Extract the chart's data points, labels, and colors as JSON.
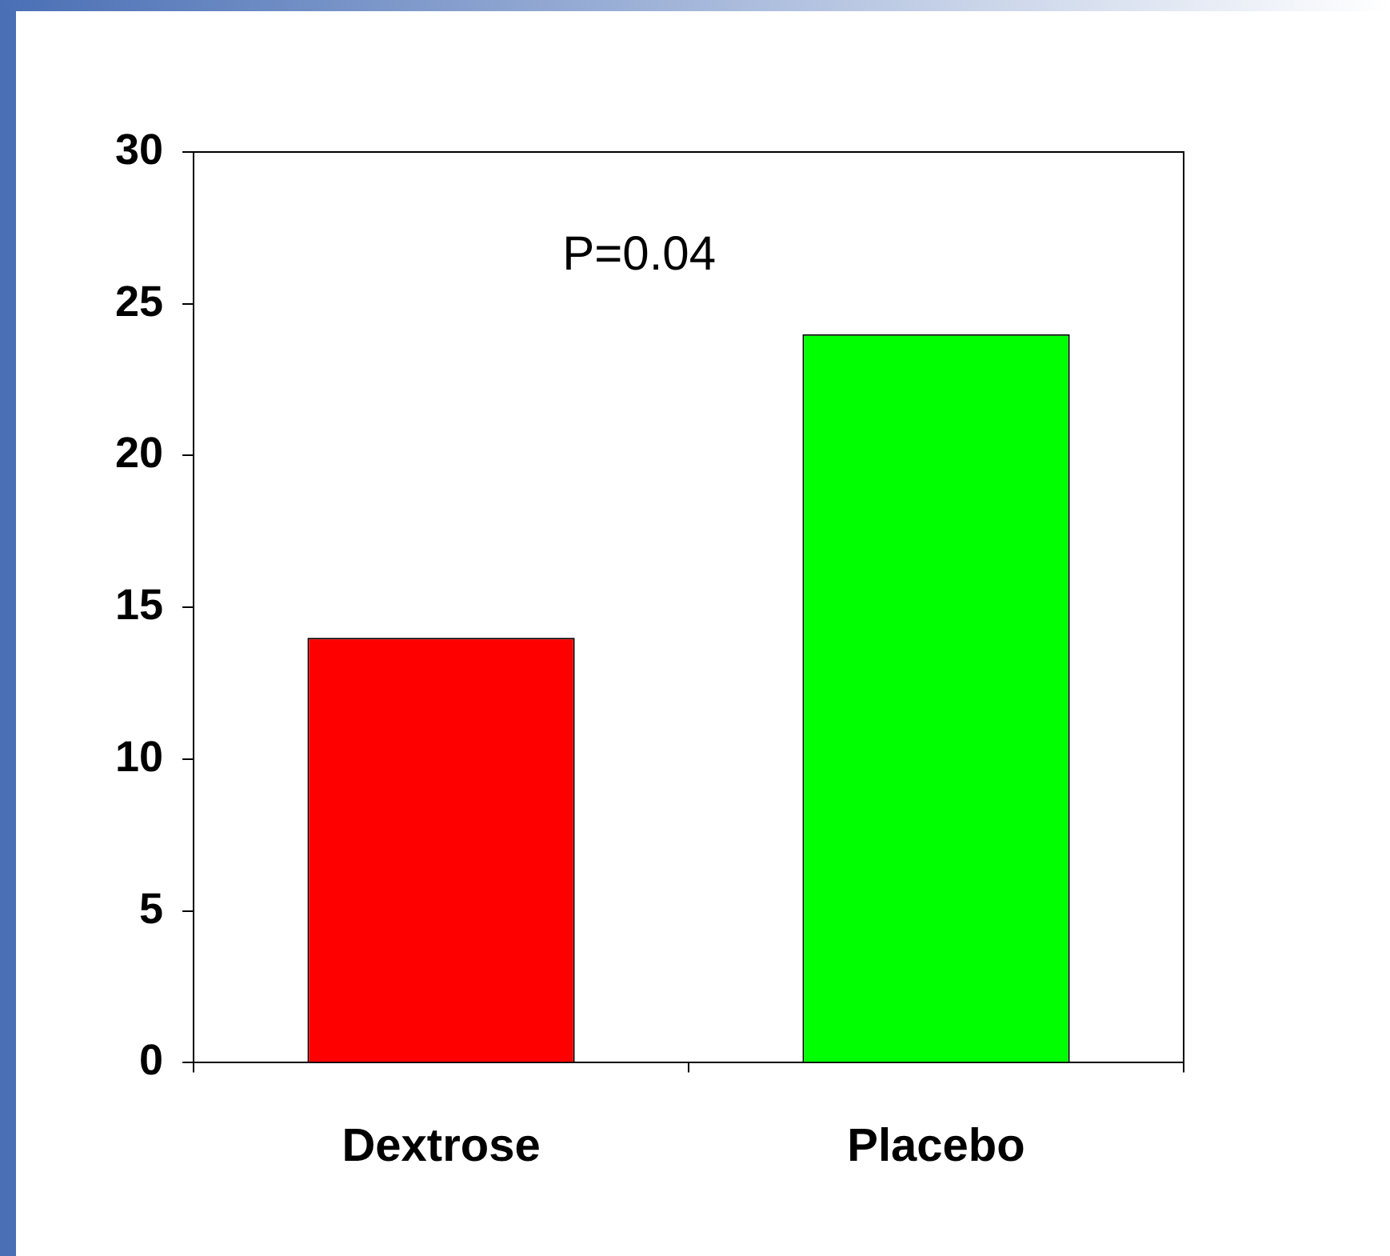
{
  "chart_data": {
    "type": "bar",
    "categories": [
      "Dextrose",
      "Placebo"
    ],
    "values": [
      14,
      24
    ],
    "colors": [
      "#ff0000",
      "#00ff00"
    ],
    "ylim": [
      0,
      30
    ],
    "yticks": [
      0,
      5,
      10,
      15,
      20,
      25,
      30
    ],
    "grid": false,
    "legend": false,
    "annotations": [
      "P=0.04"
    ]
  }
}
